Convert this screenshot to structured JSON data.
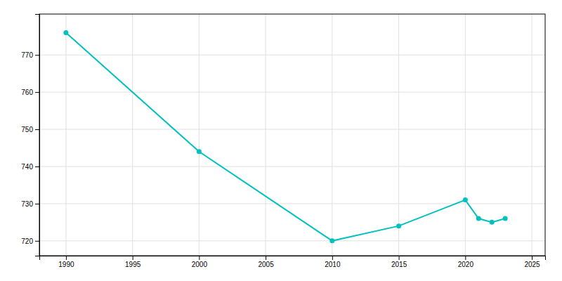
{
  "chart_data": {
    "type": "line",
    "x": [
      1990,
      2000,
      2010,
      2015,
      2020,
      2021,
      2022,
      2023
    ],
    "values": [
      776,
      744,
      720,
      724,
      731,
      726,
      725,
      726
    ],
    "color": "#00C0C0",
    "marker": "circle",
    "xlim": [
      1988,
      2026
    ],
    "ylim": [
      716,
      781
    ],
    "xticks": [
      1990,
      1995,
      2000,
      2005,
      2010,
      2015,
      2020,
      2025
    ],
    "yticks": [
      720,
      730,
      740,
      750,
      760,
      770
    ],
    "grid": true
  }
}
